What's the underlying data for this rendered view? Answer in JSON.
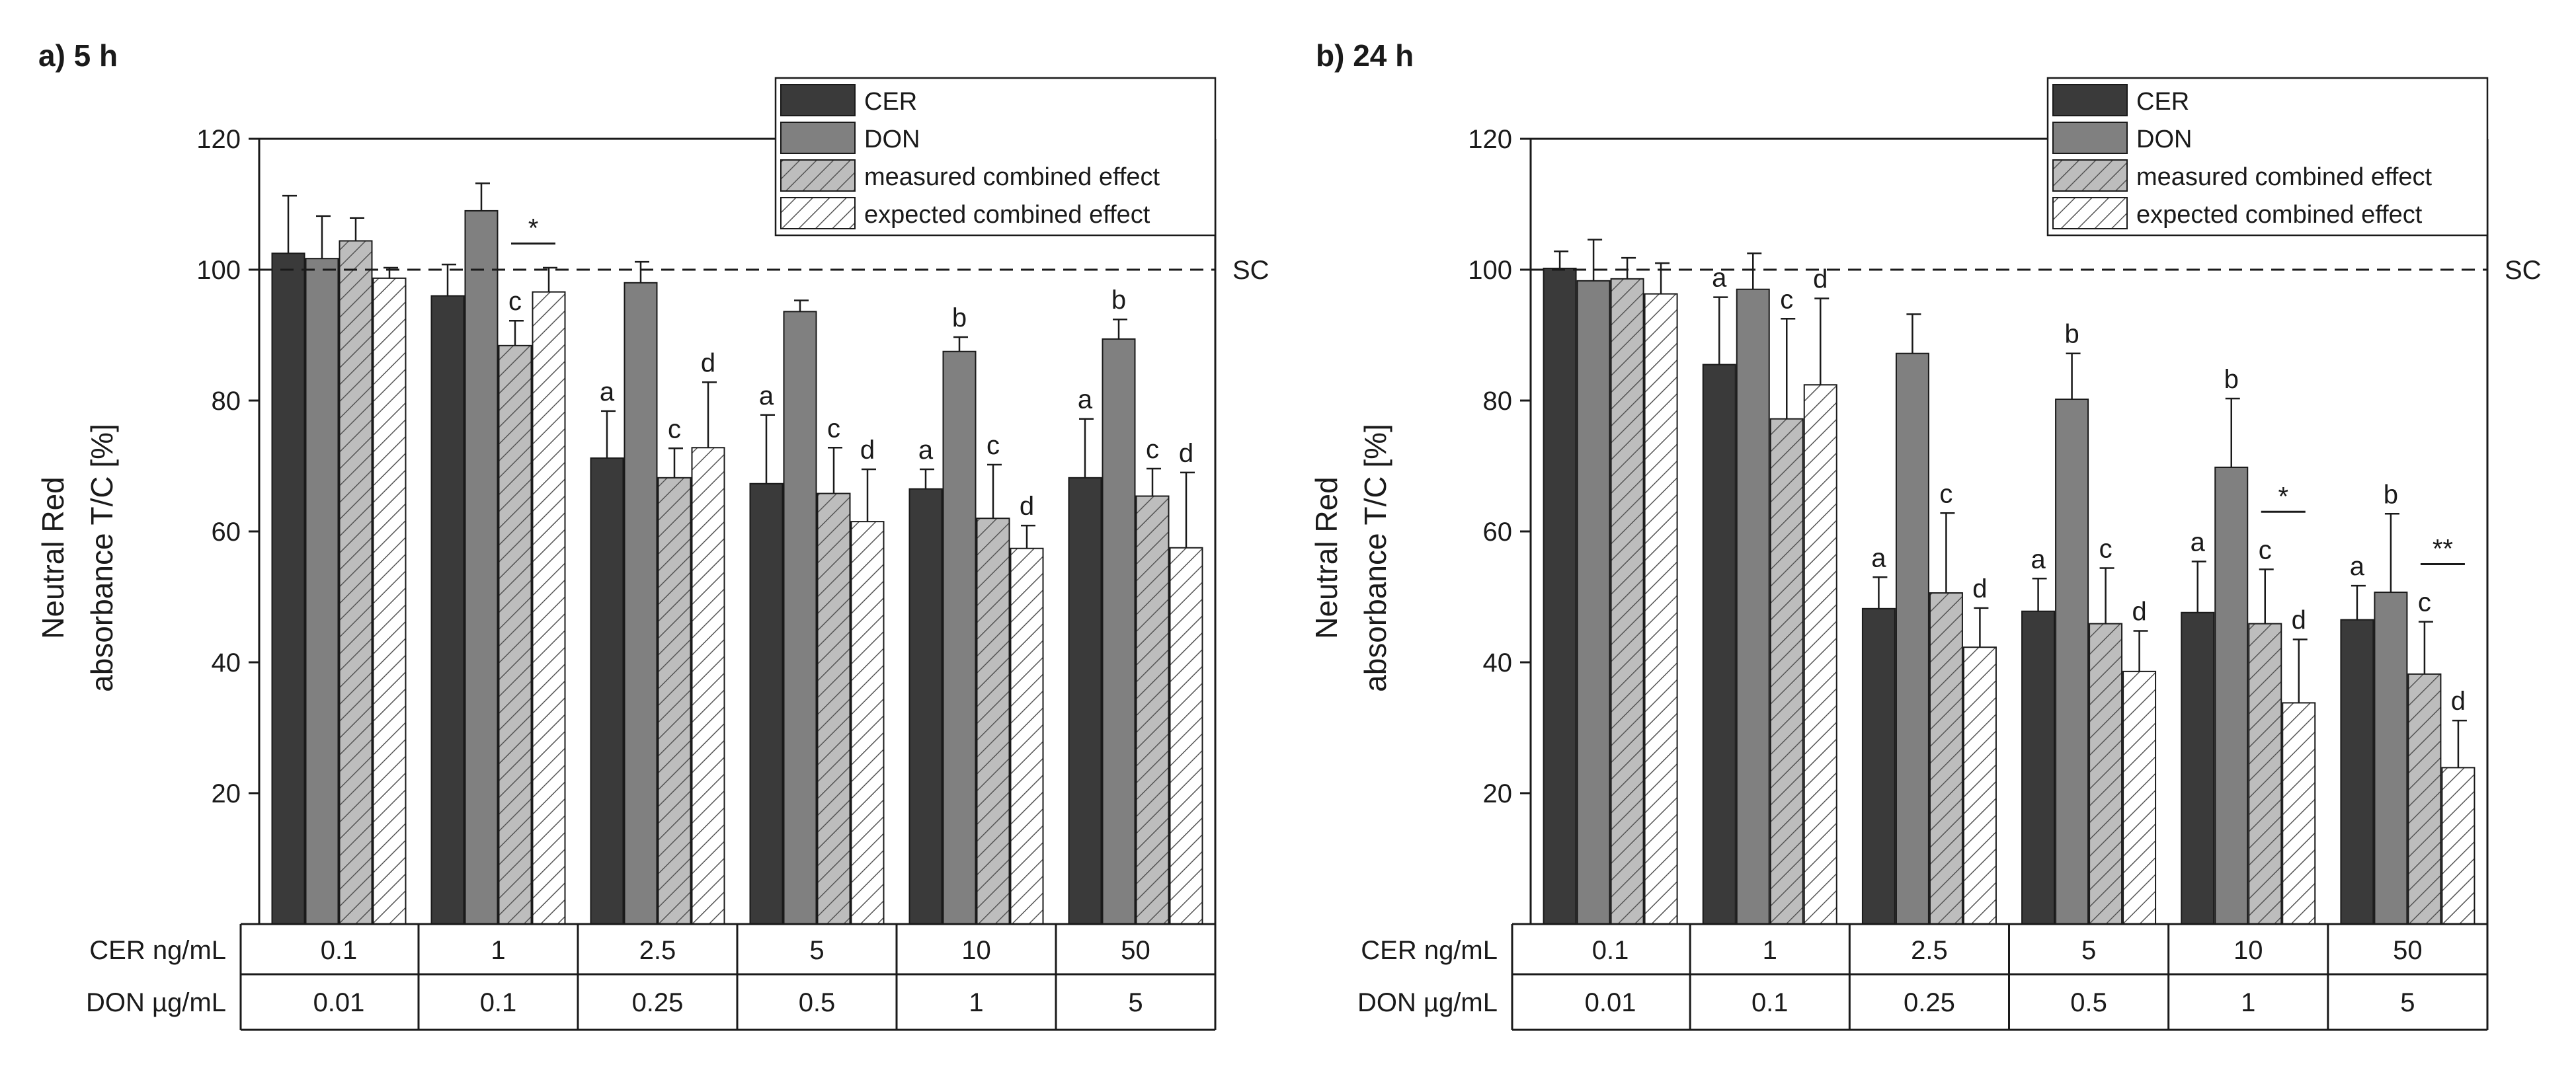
{
  "figure": {
    "colors": {
      "CER": "#3a3a3a",
      "DON": "#808080",
      "measured": "#bdbdbd",
      "expected": "#ffffff",
      "hatch": "#555555",
      "axis": "#1a1a1a"
    }
  },
  "chart_data": [
    {
      "type": "bar",
      "panel_label": "a) 5 h",
      "ylabel": [
        "Neutral Red",
        "absorbance T/C [%]"
      ],
      "ylim": [
        0,
        120
      ],
      "yticks": [
        20,
        40,
        60,
        80,
        100,
        120
      ],
      "reference_line": {
        "value": 100,
        "label": "SC"
      },
      "legend": [
        "CER",
        "DON",
        "measured combined effect",
        "expected combined effect"
      ],
      "legend_position": "top-right",
      "series": [
        {
          "name": "CER",
          "values": [
            102.5,
            96,
            71.2,
            67.3,
            66.5,
            68.2
          ],
          "errors": [
            8.8,
            4.8,
            7.2,
            10.5,
            3,
            9
          ]
        },
        {
          "name": "DON",
          "values": [
            101.7,
            109,
            98,
            93.6,
            87.5,
            89.4
          ],
          "errors": [
            6.5,
            4.2,
            3.2,
            1.7,
            2.2,
            3
          ]
        },
        {
          "name": "measured combined effect",
          "values": [
            104.4,
            88.4,
            68.2,
            65.8,
            62,
            65.4
          ],
          "errors": [
            3.5,
            3.8,
            4.5,
            7,
            8.2,
            4.2
          ]
        },
        {
          "name": "expected combined effect",
          "values": [
            98.7,
            96.6,
            72.8,
            61.5,
            57.4,
            57.5
          ],
          "errors": [
            1.6,
            3.7,
            10,
            8,
            3.5,
            11.5
          ]
        }
      ],
      "category_table": {
        "rows": [
          {
            "label": "CER ng/mL",
            "values": [
              "0.1",
              "1",
              "2.5",
              "5",
              "10",
              "50"
            ]
          },
          {
            "label": "DON µg/mL",
            "values": [
              "0.01",
              "0.1",
              "0.25",
              "0.5",
              "1",
              "5"
            ]
          }
        ]
      },
      "letter_annotations": [
        {
          "group": 1,
          "series": 2,
          "text": "c"
        },
        {
          "group": 2,
          "series": 0,
          "text": "a"
        },
        {
          "group": 2,
          "series": 2,
          "text": "c"
        },
        {
          "group": 2,
          "series": 3,
          "text": "d"
        },
        {
          "group": 3,
          "series": 0,
          "text": "a"
        },
        {
          "group": 3,
          "series": 2,
          "text": "c"
        },
        {
          "group": 3,
          "series": 3,
          "text": "d"
        },
        {
          "group": 4,
          "series": 0,
          "text": "a"
        },
        {
          "group": 4,
          "series": 1,
          "text": "b"
        },
        {
          "group": 4,
          "series": 2,
          "text": "c"
        },
        {
          "group": 4,
          "series": 3,
          "text": "d"
        },
        {
          "group": 5,
          "series": 0,
          "text": "a"
        },
        {
          "group": 5,
          "series": 1,
          "text": "b"
        },
        {
          "group": 5,
          "series": 2,
          "text": "c"
        },
        {
          "group": 5,
          "series": 3,
          "text": "d"
        }
      ],
      "significance": [
        {
          "group": 1,
          "from_series": 2,
          "to_series": 3,
          "text": "*",
          "y": 104
        }
      ]
    },
    {
      "type": "bar",
      "panel_label": "b) 24 h",
      "ylabel": [
        "Neutral Red",
        "absorbance T/C [%]"
      ],
      "ylim": [
        0,
        120
      ],
      "yticks": [
        20,
        40,
        60,
        80,
        100,
        120
      ],
      "reference_line": {
        "value": 100,
        "label": "SC"
      },
      "legend": [
        "CER",
        "DON",
        "measured combined effect",
        "expected combined effect"
      ],
      "legend_position": "top-right",
      "series": [
        {
          "name": "CER",
          "values": [
            100.2,
            85.5,
            48.2,
            47.8,
            47.6,
            46.5
          ],
          "errors": [
            2.6,
            10.3,
            4.8,
            5,
            7.8,
            5.2
          ]
        },
        {
          "name": "DON",
          "values": [
            98.3,
            97,
            87.2,
            80.2,
            69.8,
            50.7
          ],
          "errors": [
            6.3,
            5.5,
            6,
            7,
            10.5,
            12
          ]
        },
        {
          "name": "measured combined effect",
          "values": [
            98.6,
            77.2,
            50.6,
            45.9,
            45.9,
            38.2
          ],
          "errors": [
            3.2,
            15.3,
            12.2,
            8.5,
            8.3,
            8
          ]
        },
        {
          "name": "expected combined effect",
          "values": [
            96.3,
            82.4,
            42.3,
            38.6,
            33.8,
            23.9
          ],
          "errors": [
            4.7,
            13.2,
            6,
            6.2,
            9.7,
            7.2
          ]
        }
      ],
      "category_table": {
        "rows": [
          {
            "label": "CER ng/mL",
            "values": [
              "0.1",
              "1",
              "2.5",
              "5",
              "10",
              "50"
            ]
          },
          {
            "label": "DON µg/mL",
            "values": [
              "0.01",
              "0.1",
              "0.25",
              "0.5",
              "1",
              "5"
            ]
          }
        ]
      },
      "letter_annotations": [
        {
          "group": 1,
          "series": 0,
          "text": "a"
        },
        {
          "group": 1,
          "series": 2,
          "text": "c"
        },
        {
          "group": 1,
          "series": 3,
          "text": "d"
        },
        {
          "group": 2,
          "series": 0,
          "text": "a"
        },
        {
          "group": 2,
          "series": 2,
          "text": "c"
        },
        {
          "group": 2,
          "series": 3,
          "text": "d"
        },
        {
          "group": 3,
          "series": 0,
          "text": "a"
        },
        {
          "group": 3,
          "series": 1,
          "text": "b"
        },
        {
          "group": 3,
          "series": 2,
          "text": "c"
        },
        {
          "group": 3,
          "series": 3,
          "text": "d"
        },
        {
          "group": 4,
          "series": 0,
          "text": "a"
        },
        {
          "group": 4,
          "series": 1,
          "text": "b"
        },
        {
          "group": 4,
          "series": 2,
          "text": "c"
        },
        {
          "group": 4,
          "series": 3,
          "text": "d"
        },
        {
          "group": 5,
          "series": 0,
          "text": "a"
        },
        {
          "group": 5,
          "series": 1,
          "text": "b"
        },
        {
          "group": 5,
          "series": 2,
          "text": "c"
        },
        {
          "group": 5,
          "series": 3,
          "text": "d"
        }
      ],
      "significance": [
        {
          "group": 4,
          "from_series": 2,
          "to_series": 3,
          "text": "*",
          "y": 63
        },
        {
          "group": 5,
          "from_series": 2,
          "to_series": 3,
          "text": "**",
          "y": 55
        }
      ]
    }
  ]
}
